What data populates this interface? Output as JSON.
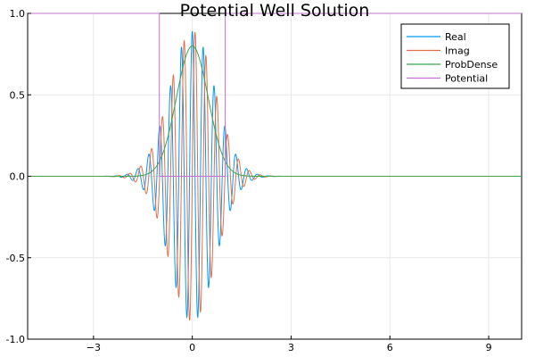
{
  "chart_data": {
    "type": "line",
    "title": "Potential Well Solution",
    "xlabel": "",
    "ylabel": "",
    "xlim": [
      -5,
      10
    ],
    "ylim": [
      -1.0,
      1.0
    ],
    "xticks": [
      {
        "value": -3,
        "label": "−3"
      },
      {
        "value": 0,
        "label": "0"
      },
      {
        "value": 3,
        "label": "3"
      },
      {
        "value": 6,
        "label": "6"
      },
      {
        "value": 9,
        "label": "9"
      }
    ],
    "yticks": [
      {
        "value": -1.0,
        "label": "-1.0"
      },
      {
        "value": -0.5,
        "label": "-0.5"
      },
      {
        "value": 0.0,
        "label": "0.0"
      },
      {
        "value": 0.5,
        "label": "0.5"
      },
      {
        "value": 1.0,
        "label": "1.0"
      }
    ],
    "grid": true,
    "legend_position": "top-right",
    "series": [
      {
        "name": "Real",
        "color": "#009AFA",
        "form": "gaussian_wave_packet",
        "center": 0.0,
        "sigma": 0.68,
        "amplitude": 0.89,
        "wavenumber": 19.0,
        "phase": "cos",
        "x_range": [
          -5,
          10
        ]
      },
      {
        "name": "Imag",
        "color": "#E36F47",
        "form": "gaussian_wave_packet",
        "center": 0.0,
        "sigma": 0.68,
        "amplitude": 0.89,
        "wavenumber": 19.0,
        "phase": "sin",
        "x_range": [
          -5,
          10
        ]
      },
      {
        "name": "ProbDense",
        "color": "#3EA44E",
        "form": "gaussian",
        "center": 0.0,
        "sigma": 0.48,
        "amplitude": 0.8,
        "x_range": [
          -5,
          10
        ]
      },
      {
        "name": "Potential",
        "color": "#C371D2",
        "form": "step",
        "x": [
          -5,
          -1,
          -1,
          1,
          1,
          10
        ],
        "y": [
          1.0,
          1.0,
          0.0,
          0.0,
          1.0,
          1.0
        ]
      }
    ]
  }
}
